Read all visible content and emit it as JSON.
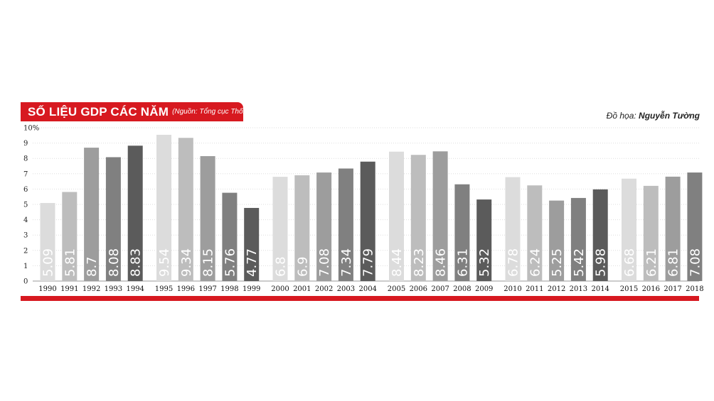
{
  "header": {
    "title": "SỐ LIỆU GDP CÁC NĂM",
    "source": "(Nguồn: Tổng cục Thống kê)",
    "credit_prefix": "Đồ họa:",
    "credit_name": "Nguyễn Tường"
  },
  "chart_data": {
    "type": "bar",
    "title": "SỐ LIỆU GDP CÁC NĂM",
    "xlabel": "",
    "ylabel": "",
    "ylim": [
      0,
      10
    ],
    "yticks": [
      "0",
      "1",
      "2",
      "3",
      "4",
      "5",
      "6",
      "7",
      "8",
      "9",
      "10%"
    ],
    "grid": true,
    "categories": [
      "1990",
      "1991",
      "1992",
      "1993",
      "1994",
      "1995",
      "1996",
      "1997",
      "1998",
      "1999",
      "2000",
      "2001",
      "2002",
      "2003",
      "2004",
      "2005",
      "2006",
      "2007",
      "2008",
      "2009",
      "2010",
      "2011",
      "2012",
      "2013",
      "2014",
      "2015",
      "2016",
      "2017",
      "2018"
    ],
    "values": [
      5.09,
      5.81,
      8.7,
      8.08,
      8.83,
      9.54,
      9.34,
      8.15,
      5.76,
      4.77,
      6.8,
      6.9,
      7.08,
      7.34,
      7.79,
      8.44,
      8.23,
      8.46,
      6.31,
      5.32,
      6.78,
      6.24,
      5.25,
      5.42,
      5.98,
      6.68,
      6.21,
      6.81,
      7.08
    ],
    "value_labels": [
      "5.09",
      "5.81",
      "8.7",
      "8.08",
      "8.83",
      "9.54",
      "9.34",
      "8.15",
      "5.76",
      "4.77",
      "6.8",
      "6.9",
      "7.08",
      "7.34",
      "7.79",
      "8.44",
      "8.23",
      "8.46",
      "6.31",
      "5.32",
      "6.78",
      "6.24",
      "5.25",
      "5.42",
      "5.98",
      "6.68",
      "6.21",
      "6.81",
      "7.08"
    ],
    "group_shades": [
      "#dcdcdc",
      "#bdbdbd",
      "#9d9d9d",
      "#808080",
      "#5b5b5b"
    ]
  }
}
